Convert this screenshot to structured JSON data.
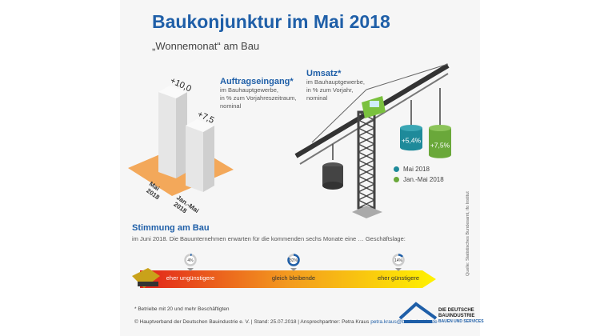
{
  "title": "Baukonjunktur im Mai 2018",
  "subtitle": "„Wonnemonat“ am Bau",
  "auftrag": {
    "title": "Auftragseingang*",
    "desc": [
      "im Bauhauptgewerbe,",
      "in % zum Vorjahreszeitraum,",
      "nominal"
    ]
  },
  "umsatz": {
    "title": "Umsatz*",
    "desc": [
      "im Bauhauptgewerbe,",
      "in % zum Vorjahr,",
      "nominal"
    ]
  },
  "chart_data": [
    {
      "type": "bar",
      "title": "Auftragseingang*",
      "categories": [
        "Mai 2018",
        "Jan.-Mai 2018"
      ],
      "values": [
        10.0,
        7.5
      ],
      "labels": [
        "+10,0",
        "+7,5"
      ],
      "cat_labels": [
        [
          "Mai",
          "2018"
        ],
        [
          "Jan.-Mai",
          "2018"
        ]
      ],
      "color": "#f3a85a"
    },
    {
      "type": "bar",
      "title": "Umsatz*",
      "categories": [
        "Mai 2018",
        "Jan.-Mai 2018"
      ],
      "values": [
        5.4,
        7.5
      ],
      "labels": [
        "+5,4%",
        "+7,5%"
      ],
      "colors": [
        "#1e8a9a",
        "#6aa83a"
      ],
      "legend": [
        "Mai 2018",
        "Jan.-Mai 2018"
      ]
    }
  ],
  "stimmung": {
    "title": "Stimmung am Bau",
    "desc": "im Juni 2018. Die Bauunternehmen erwarten für die kommenden sechs Monate eine … Geschäftslage:",
    "items": [
      {
        "label": "eher ungünstigere",
        "value": 4,
        "text": "4%"
      },
      {
        "label": "gleich bleibende",
        "value": 82,
        "text": "82%"
      },
      {
        "label": "eher günstigere",
        "value": 14,
        "text": "14%"
      }
    ]
  },
  "footnote": "* Betriebe mit 20 und mehr Beschäftigten",
  "footer": "© Hauptverband der Deutschen Bauindustrie e. V. | Stand: 25.07.2018 | Ansprechpartner: Petra Kraus ",
  "email": "petra.kraus@bauindustrie.de",
  "source": "Quelle: Statistisches Bundesamt, ifo Institut",
  "logo": [
    "DIE DEUTSCHE",
    "BAUINDUSTRIE",
    "BAUEN UND SERVICES"
  ]
}
